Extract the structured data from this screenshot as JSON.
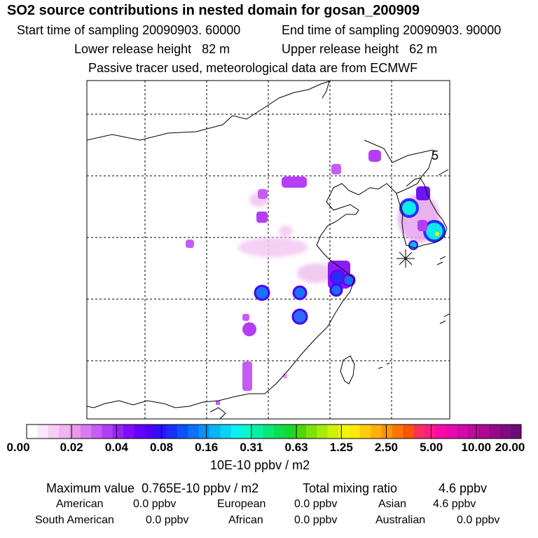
{
  "title": "SO2 source contributions in nested domain for gosan_200909",
  "sampling": {
    "start_label": "Start time of sampling",
    "start_value": "20090903. 60000",
    "end_label": "End time of sampling",
    "end_value": "20090903. 90000"
  },
  "release": {
    "lower_label": "Lower release height",
    "lower_value": "82 m",
    "upper_label": "Upper release height",
    "upper_value": "62 m"
  },
  "note": "Passive tracer used, meteorological data are from ECMWF",
  "map_label": "5",
  "colorbar": {
    "colors": [
      "#ffffff",
      "#fbe6fb",
      "#f6cdf6",
      "#f0b4f0",
      "#e89ae9",
      "#d97bf0",
      "#c85cf5",
      "#b23df8",
      "#9a21fa",
      "#7f0ffb",
      "#6400fb",
      "#4a00fb",
      "#2f10fb",
      "#1a30fb",
      "#0b52fa",
      "#0a72f9",
      "#0a92f8",
      "#0ab3f7",
      "#0ad1f5",
      "#0aefef",
      "#0af7c8",
      "#0af0a0",
      "#0ae878",
      "#0ae050",
      "#1ad82a",
      "#4cd80a",
      "#7ee20a",
      "#a8eb0a",
      "#cdf10a",
      "#f0f50a",
      "#ffe80a",
      "#ffcc0a",
      "#ffb00a",
      "#ff9408",
      "#ff7406",
      "#ff5406",
      "#ff3060",
      "#ff1a8c",
      "#f80aa8",
      "#e60ab0",
      "#d20aa8",
      "#be0a9e",
      "#aa0a94",
      "#960a8a",
      "#820a80",
      "#6e0a76"
    ],
    "labels": [
      "0.00",
      "0.02",
      "0.04",
      "0.08",
      "0.16",
      "0.31",
      "0.63",
      "1.25",
      "2.50",
      "5.00",
      "10.00",
      "20.00"
    ],
    "unit": "10E-10 ppbv / m2"
  },
  "summary": {
    "max_label": "Maximum value",
    "max_value": "0.765E-10 ppbv / m2",
    "total_label": "Total mixing ratio",
    "total_value": "4.6 ppbv"
  },
  "regions": [
    {
      "name": "American",
      "value": "0.0 ppbv"
    },
    {
      "name": "European",
      "value": "0.0 ppbv"
    },
    {
      "name": "Asian",
      "value": "4.6 ppbv"
    },
    {
      "name": "South American",
      "value": "0.0 ppbv"
    },
    {
      "name": "African",
      "value": "0.0 ppbv"
    },
    {
      "name": "Australian",
      "value": "0.0 ppbv"
    }
  ]
}
